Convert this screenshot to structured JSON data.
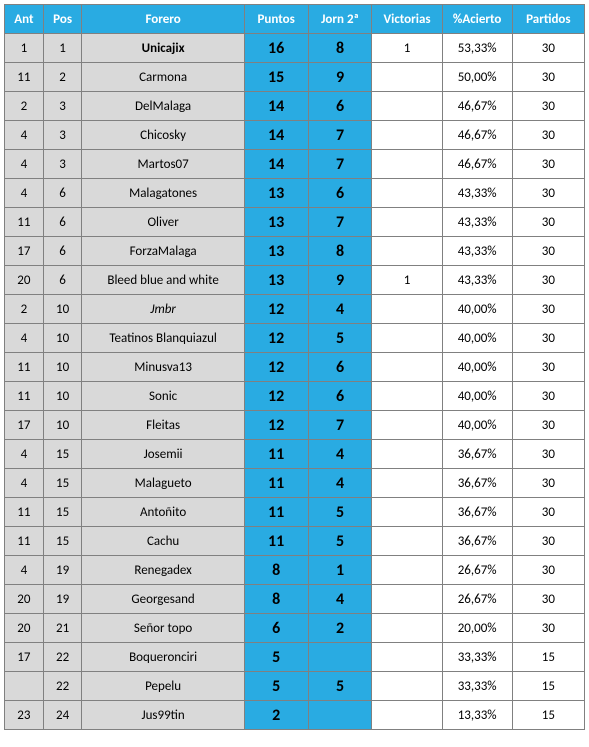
{
  "headers": {
    "ant": "Ant",
    "pos": "Pos",
    "forero": "Forero",
    "puntos": "Puntos",
    "jorn": "Jorn 2ª",
    "victorias": "Victorias",
    "acierto": "%Acierto",
    "partidos": "Partidos"
  },
  "rows": [
    {
      "ant": "1",
      "pos": "1",
      "forero": "Unicajix",
      "puntos": "16",
      "jorn": "8",
      "victorias": "1",
      "acierto": "53,33%",
      "partidos": "30",
      "bold": true
    },
    {
      "ant": "11",
      "pos": "2",
      "forero": "Carmona",
      "puntos": "15",
      "jorn": "9",
      "victorias": "",
      "acierto": "50,00%",
      "partidos": "30"
    },
    {
      "ant": "2",
      "pos": "3",
      "forero": "DelMalaga",
      "puntos": "14",
      "jorn": "6",
      "victorias": "",
      "acierto": "46,67%",
      "partidos": "30"
    },
    {
      "ant": "4",
      "pos": "3",
      "forero": "Chicosky",
      "puntos": "14",
      "jorn": "7",
      "victorias": "",
      "acierto": "46,67%",
      "partidos": "30"
    },
    {
      "ant": "4",
      "pos": "3",
      "forero": "Martos07",
      "puntos": "14",
      "jorn": "7",
      "victorias": "",
      "acierto": "46,67%",
      "partidos": "30"
    },
    {
      "ant": "4",
      "pos": "6",
      "forero": "Malagatones",
      "puntos": "13",
      "jorn": "6",
      "victorias": "",
      "acierto": "43,33%",
      "partidos": "30"
    },
    {
      "ant": "11",
      "pos": "6",
      "forero": "Oliver",
      "puntos": "13",
      "jorn": "7",
      "victorias": "",
      "acierto": "43,33%",
      "partidos": "30"
    },
    {
      "ant": "17",
      "pos": "6",
      "forero": "ForzaMalaga",
      "puntos": "13",
      "jorn": "8",
      "victorias": "",
      "acierto": "43,33%",
      "partidos": "30"
    },
    {
      "ant": "20",
      "pos": "6",
      "forero": "Bleed blue and white",
      "puntos": "13",
      "jorn": "9",
      "victorias": "1",
      "acierto": "43,33%",
      "partidos": "30"
    },
    {
      "ant": "2",
      "pos": "10",
      "forero": "Jmbr",
      "puntos": "12",
      "jorn": "4",
      "victorias": "",
      "acierto": "40,00%",
      "partidos": "30",
      "italic": true
    },
    {
      "ant": "4",
      "pos": "10",
      "forero": "Teatinos Blanquiazul",
      "puntos": "12",
      "jorn": "5",
      "victorias": "",
      "acierto": "40,00%",
      "partidos": "30"
    },
    {
      "ant": "11",
      "pos": "10",
      "forero": "Minusva13",
      "puntos": "12",
      "jorn": "6",
      "victorias": "",
      "acierto": "40,00%",
      "partidos": "30"
    },
    {
      "ant": "11",
      "pos": "10",
      "forero": "Sonic",
      "puntos": "12",
      "jorn": "6",
      "victorias": "",
      "acierto": "40,00%",
      "partidos": "30"
    },
    {
      "ant": "17",
      "pos": "10",
      "forero": "Fleitas",
      "puntos": "12",
      "jorn": "7",
      "victorias": "",
      "acierto": "40,00%",
      "partidos": "30"
    },
    {
      "ant": "4",
      "pos": "15",
      "forero": "Josemii",
      "puntos": "11",
      "jorn": "4",
      "victorias": "",
      "acierto": "36,67%",
      "partidos": "30"
    },
    {
      "ant": "4",
      "pos": "15",
      "forero": "Malagueto",
      "puntos": "11",
      "jorn": "4",
      "victorias": "",
      "acierto": "36,67%",
      "partidos": "30"
    },
    {
      "ant": "11",
      "pos": "15",
      "forero": "Antoñito",
      "puntos": "11",
      "jorn": "5",
      "victorias": "",
      "acierto": "36,67%",
      "partidos": "30"
    },
    {
      "ant": "11",
      "pos": "15",
      "forero": "Cachu",
      "puntos": "11",
      "jorn": "5",
      "victorias": "",
      "acierto": "36,67%",
      "partidos": "30"
    },
    {
      "ant": "4",
      "pos": "19",
      "forero": "Renegadex",
      "puntos": "8",
      "jorn": "1",
      "victorias": "",
      "acierto": "26,67%",
      "partidos": "30"
    },
    {
      "ant": "20",
      "pos": "19",
      "forero": "Georgesand",
      "puntos": "8",
      "jorn": "4",
      "victorias": "",
      "acierto": "26,67%",
      "partidos": "30"
    },
    {
      "ant": "20",
      "pos": "21",
      "forero": "Señor topo",
      "puntos": "6",
      "jorn": "2",
      "victorias": "",
      "acierto": "20,00%",
      "partidos": "30"
    },
    {
      "ant": "17",
      "pos": "22",
      "forero": "Boqueronciri",
      "puntos": "5",
      "jorn": "",
      "victorias": "",
      "acierto": "33,33%",
      "partidos": "15"
    },
    {
      "ant": "",
      "pos": "22",
      "forero": "Pepelu",
      "puntos": "5",
      "jorn": "5",
      "victorias": "",
      "acierto": "33,33%",
      "partidos": "15"
    },
    {
      "ant": "23",
      "pos": "24",
      "forero": "Jus99tin",
      "puntos": "2",
      "jorn": "",
      "victorias": "",
      "acierto": "13,33%",
      "partidos": "15"
    }
  ]
}
